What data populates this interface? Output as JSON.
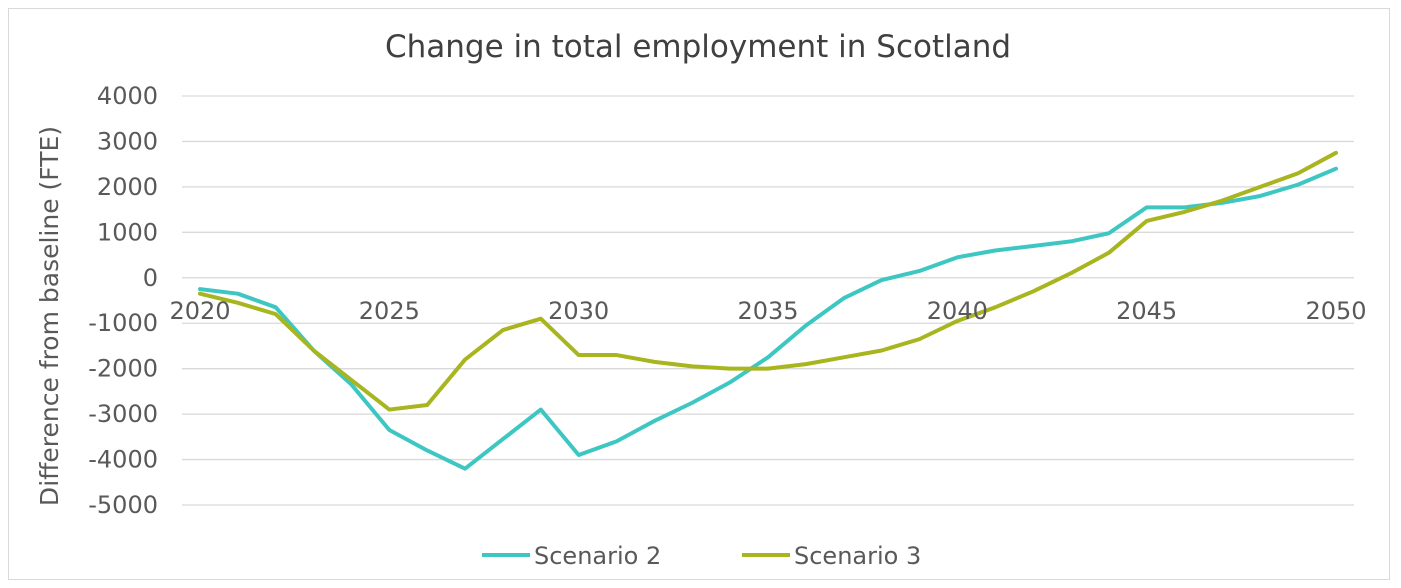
{
  "chart_data": {
    "type": "line",
    "title": "Change in total employment in Scotland",
    "xlabel": "",
    "ylabel": "Difference from baseline (FTE)",
    "ylim": [
      -5000,
      4000
    ],
    "y_ticks": [
      "4000",
      "3000",
      "2000",
      "1000",
      "0",
      "-1000",
      "-2000",
      "-3000",
      "-4000",
      "-5000"
    ],
    "x_tick_labels": [
      "2020",
      "2025",
      "2030",
      "2035",
      "2040",
      "2045",
      "2050"
    ],
    "x": [
      2020,
      2021,
      2022,
      2023,
      2024,
      2025,
      2026,
      2027,
      2028,
      2029,
      2030,
      2031,
      2032,
      2033,
      2034,
      2035,
      2036,
      2037,
      2038,
      2039,
      2040,
      2041,
      2042,
      2043,
      2044,
      2045,
      2046,
      2047,
      2048,
      2049,
      2050
    ],
    "grid": true,
    "legend_position": "bottom",
    "series": [
      {
        "name": "Scenario 2",
        "color": "#3ec7c2",
        "values": [
          -250,
          -350,
          -650,
          -1600,
          -2350,
          -3350,
          -3800,
          -4200,
          -3550,
          -2900,
          -3900,
          -3600,
          -3150,
          -2750,
          -2300,
          -1750,
          -1050,
          -450,
          -50,
          150,
          450,
          600,
          700,
          800,
          980,
          1550,
          1550,
          1650,
          1800,
          2050,
          2400
        ]
      },
      {
        "name": "Scenario 3",
        "color": "#a8b51f",
        "values": [
          -350,
          -550,
          -800,
          -1600,
          -2250,
          -2900,
          -2800,
          -1800,
          -1150,
          -900,
          -1700,
          -1700,
          -1850,
          -1950,
          -2000,
          -2000,
          -1900,
          -1750,
          -1600,
          -1350,
          -950,
          -650,
          -300,
          100,
          550,
          1250,
          1450,
          1700,
          2000,
          2300,
          2750
        ]
      }
    ]
  }
}
